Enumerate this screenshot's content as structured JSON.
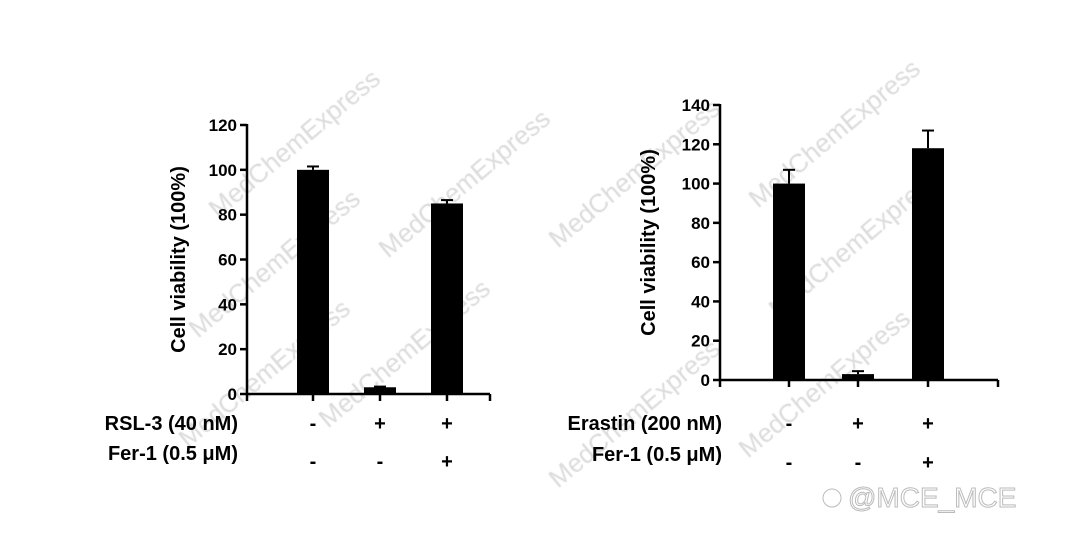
{
  "chart_data": [
    {
      "type": "bar",
      "ylabel": "Cell viability (100%)",
      "ylim": [
        0,
        120
      ],
      "yticks": [
        0,
        20,
        40,
        60,
        80,
        100,
        120
      ],
      "values": [
        100,
        3,
        85
      ],
      "error_upper": [
        101.5,
        3.3,
        86.5
      ],
      "conditions": [
        {
          "label": "RSL-3 (40 nM)",
          "signs": [
            "-",
            "+",
            "+"
          ]
        },
        {
          "label": "Fer-1 (0.5 μM)",
          "signs": [
            "-",
            "-",
            "+"
          ]
        }
      ],
      "bar_color": "#000000"
    },
    {
      "type": "bar",
      "ylabel": "Cell viability (100%)",
      "ylim": [
        0,
        140
      ],
      "yticks": [
        0,
        20,
        40,
        60,
        80,
        100,
        120,
        140
      ],
      "values": [
        100,
        3,
        118
      ],
      "error_upper": [
        107,
        4.5,
        127
      ],
      "conditions": [
        {
          "label": "Erastin (200 nM)",
          "signs": [
            "-",
            "+",
            "+"
          ]
        },
        {
          "label": "Fer-1 (0.5 μM)",
          "signs": [
            "-",
            "-",
            "+"
          ]
        }
      ],
      "bar_color": "#000000"
    }
  ],
  "watermark": {
    "text": "MedChemExpress",
    "credit": "@MCE_MCE"
  }
}
